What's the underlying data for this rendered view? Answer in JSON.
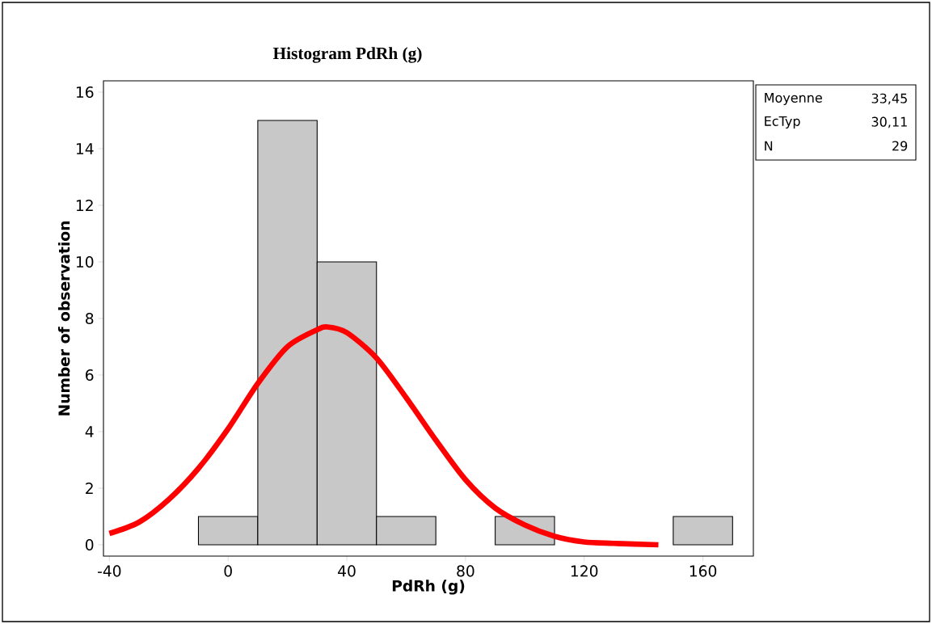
{
  "chart_data": {
    "type": "histogram",
    "title": "Histogram PdRh (g)",
    "xlabel": "PdRh (g)",
    "ylabel": "Number of observation",
    "bins": [
      -10,
      10,
      30,
      50,
      70,
      90,
      110,
      130,
      150,
      170
    ],
    "values": [
      1,
      15,
      10,
      1,
      0,
      1,
      0,
      0,
      1
    ],
    "color": "#c8c8c8",
    "series": [
      {
        "type": "line",
        "color": "#ff0000",
        "x": [
          -40,
          -30,
          -20,
          -10,
          0,
          10,
          20,
          30,
          33.45,
          40,
          50,
          60,
          70,
          80,
          90,
          100,
          110,
          120,
          130,
          145
        ],
        "values": [
          0.4,
          0.8,
          1.6,
          2.7,
          4.1,
          5.7,
          7.0,
          7.6,
          7.7,
          7.5,
          6.6,
          5.2,
          3.7,
          2.3,
          1.3,
          0.7,
          0.3,
          0.1,
          0.05,
          0
        ]
      }
    ],
    "xlim": [
      -42,
      177
    ],
    "ylim": [
      -0.4,
      16.4
    ],
    "xticks": [
      -40,
      0,
      40,
      80,
      120,
      160
    ],
    "yticks": [
      0,
      2,
      4,
      6,
      8,
      10,
      12,
      14,
      16
    ],
    "grid": false,
    "marker": "none",
    "line_style": "solid",
    "annotations": [
      "Moyenne",
      "33,45",
      "EcTyp",
      "30,11",
      "N",
      "29"
    ]
  }
}
